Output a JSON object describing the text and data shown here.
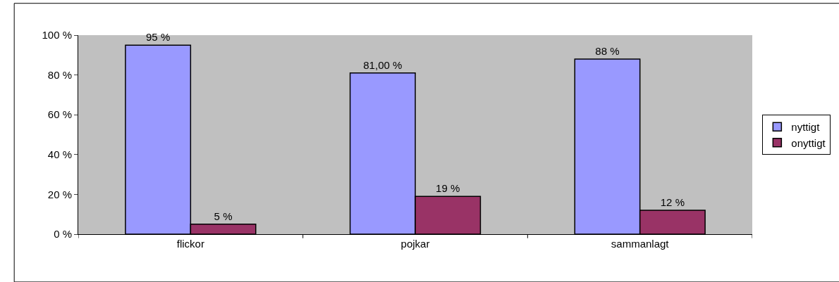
{
  "chart_data": {
    "type": "bar",
    "categories": [
      "flickor",
      "pojkar",
      "sammanlagt"
    ],
    "series": [
      {
        "name": "nyttigt",
        "color": "#9999ff",
        "values": [
          95,
          81,
          88
        ],
        "value_labels": [
          "95 %",
          "81,00 %",
          "88 %"
        ]
      },
      {
        "name": "onyttigt",
        "color": "#993366",
        "values": [
          5,
          19,
          12
        ],
        "value_labels": [
          "5 %",
          "19 %",
          "12 %"
        ]
      }
    ],
    "ylim": [
      0,
      100
    ],
    "yticks": [
      {
        "value": 0,
        "label": "0 %"
      },
      {
        "value": 20,
        "label": "20 %"
      },
      {
        "value": 40,
        "label": "40 %"
      },
      {
        "value": 60,
        "label": "60 %"
      },
      {
        "value": 80,
        "label": "80 %"
      },
      {
        "value": 100,
        "label": "100 %"
      }
    ],
    "grid": false,
    "legend": "right"
  }
}
